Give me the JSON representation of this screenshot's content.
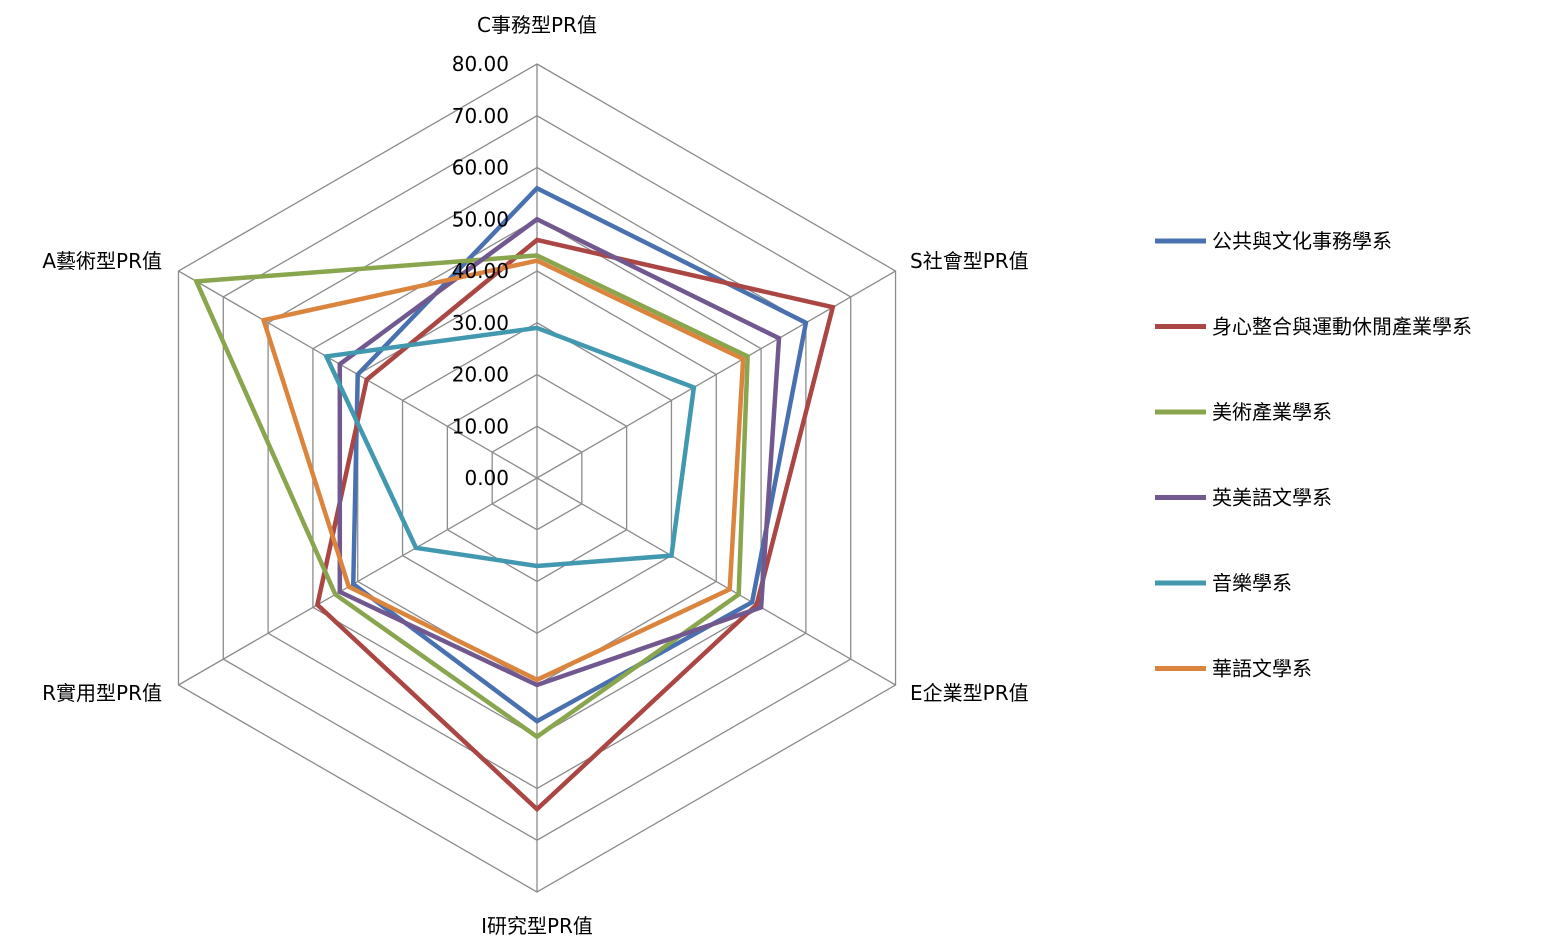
{
  "chart_data": {
    "type": "radar",
    "title": "",
    "axes": [
      "C事務型PR值",
      "S社會型PR值",
      "E企業型PR值",
      "I研究型PR值",
      "R實用型PR值",
      "A藝術型PR值"
    ],
    "range": [
      0,
      80
    ],
    "ticks": [
      "0.00",
      "10.00",
      "20.00",
      "30.00",
      "40.00",
      "50.00",
      "60.00",
      "70.00",
      "80.00"
    ],
    "grid": true,
    "legend_position": "right",
    "series": [
      {
        "name": "公共與文化事務學系",
        "color": "#4a71af",
        "values": [
          56,
          60,
          48,
          47,
          41,
          40
        ]
      },
      {
        "name": "身心整合與運動休閒產業學系",
        "color": "#aa4643",
        "values": [
          46,
          66,
          49,
          64,
          49,
          38
        ]
      },
      {
        "name": "美術產業學系",
        "color": "#89a54e",
        "values": [
          43,
          47,
          45,
          50,
          45,
          76
        ]
      },
      {
        "name": "英美語文學系",
        "color": "#71588f",
        "values": [
          50,
          54,
          50,
          40,
          44,
          44
        ]
      },
      {
        "name": "音樂學系",
        "color": "#4198af",
        "values": [
          29,
          35,
          30,
          17,
          27,
          47
        ]
      },
      {
        "name": "華語文學系",
        "color": "#db843d",
        "values": [
          42,
          46,
          43,
          39,
          42,
          61
        ]
      }
    ]
  }
}
